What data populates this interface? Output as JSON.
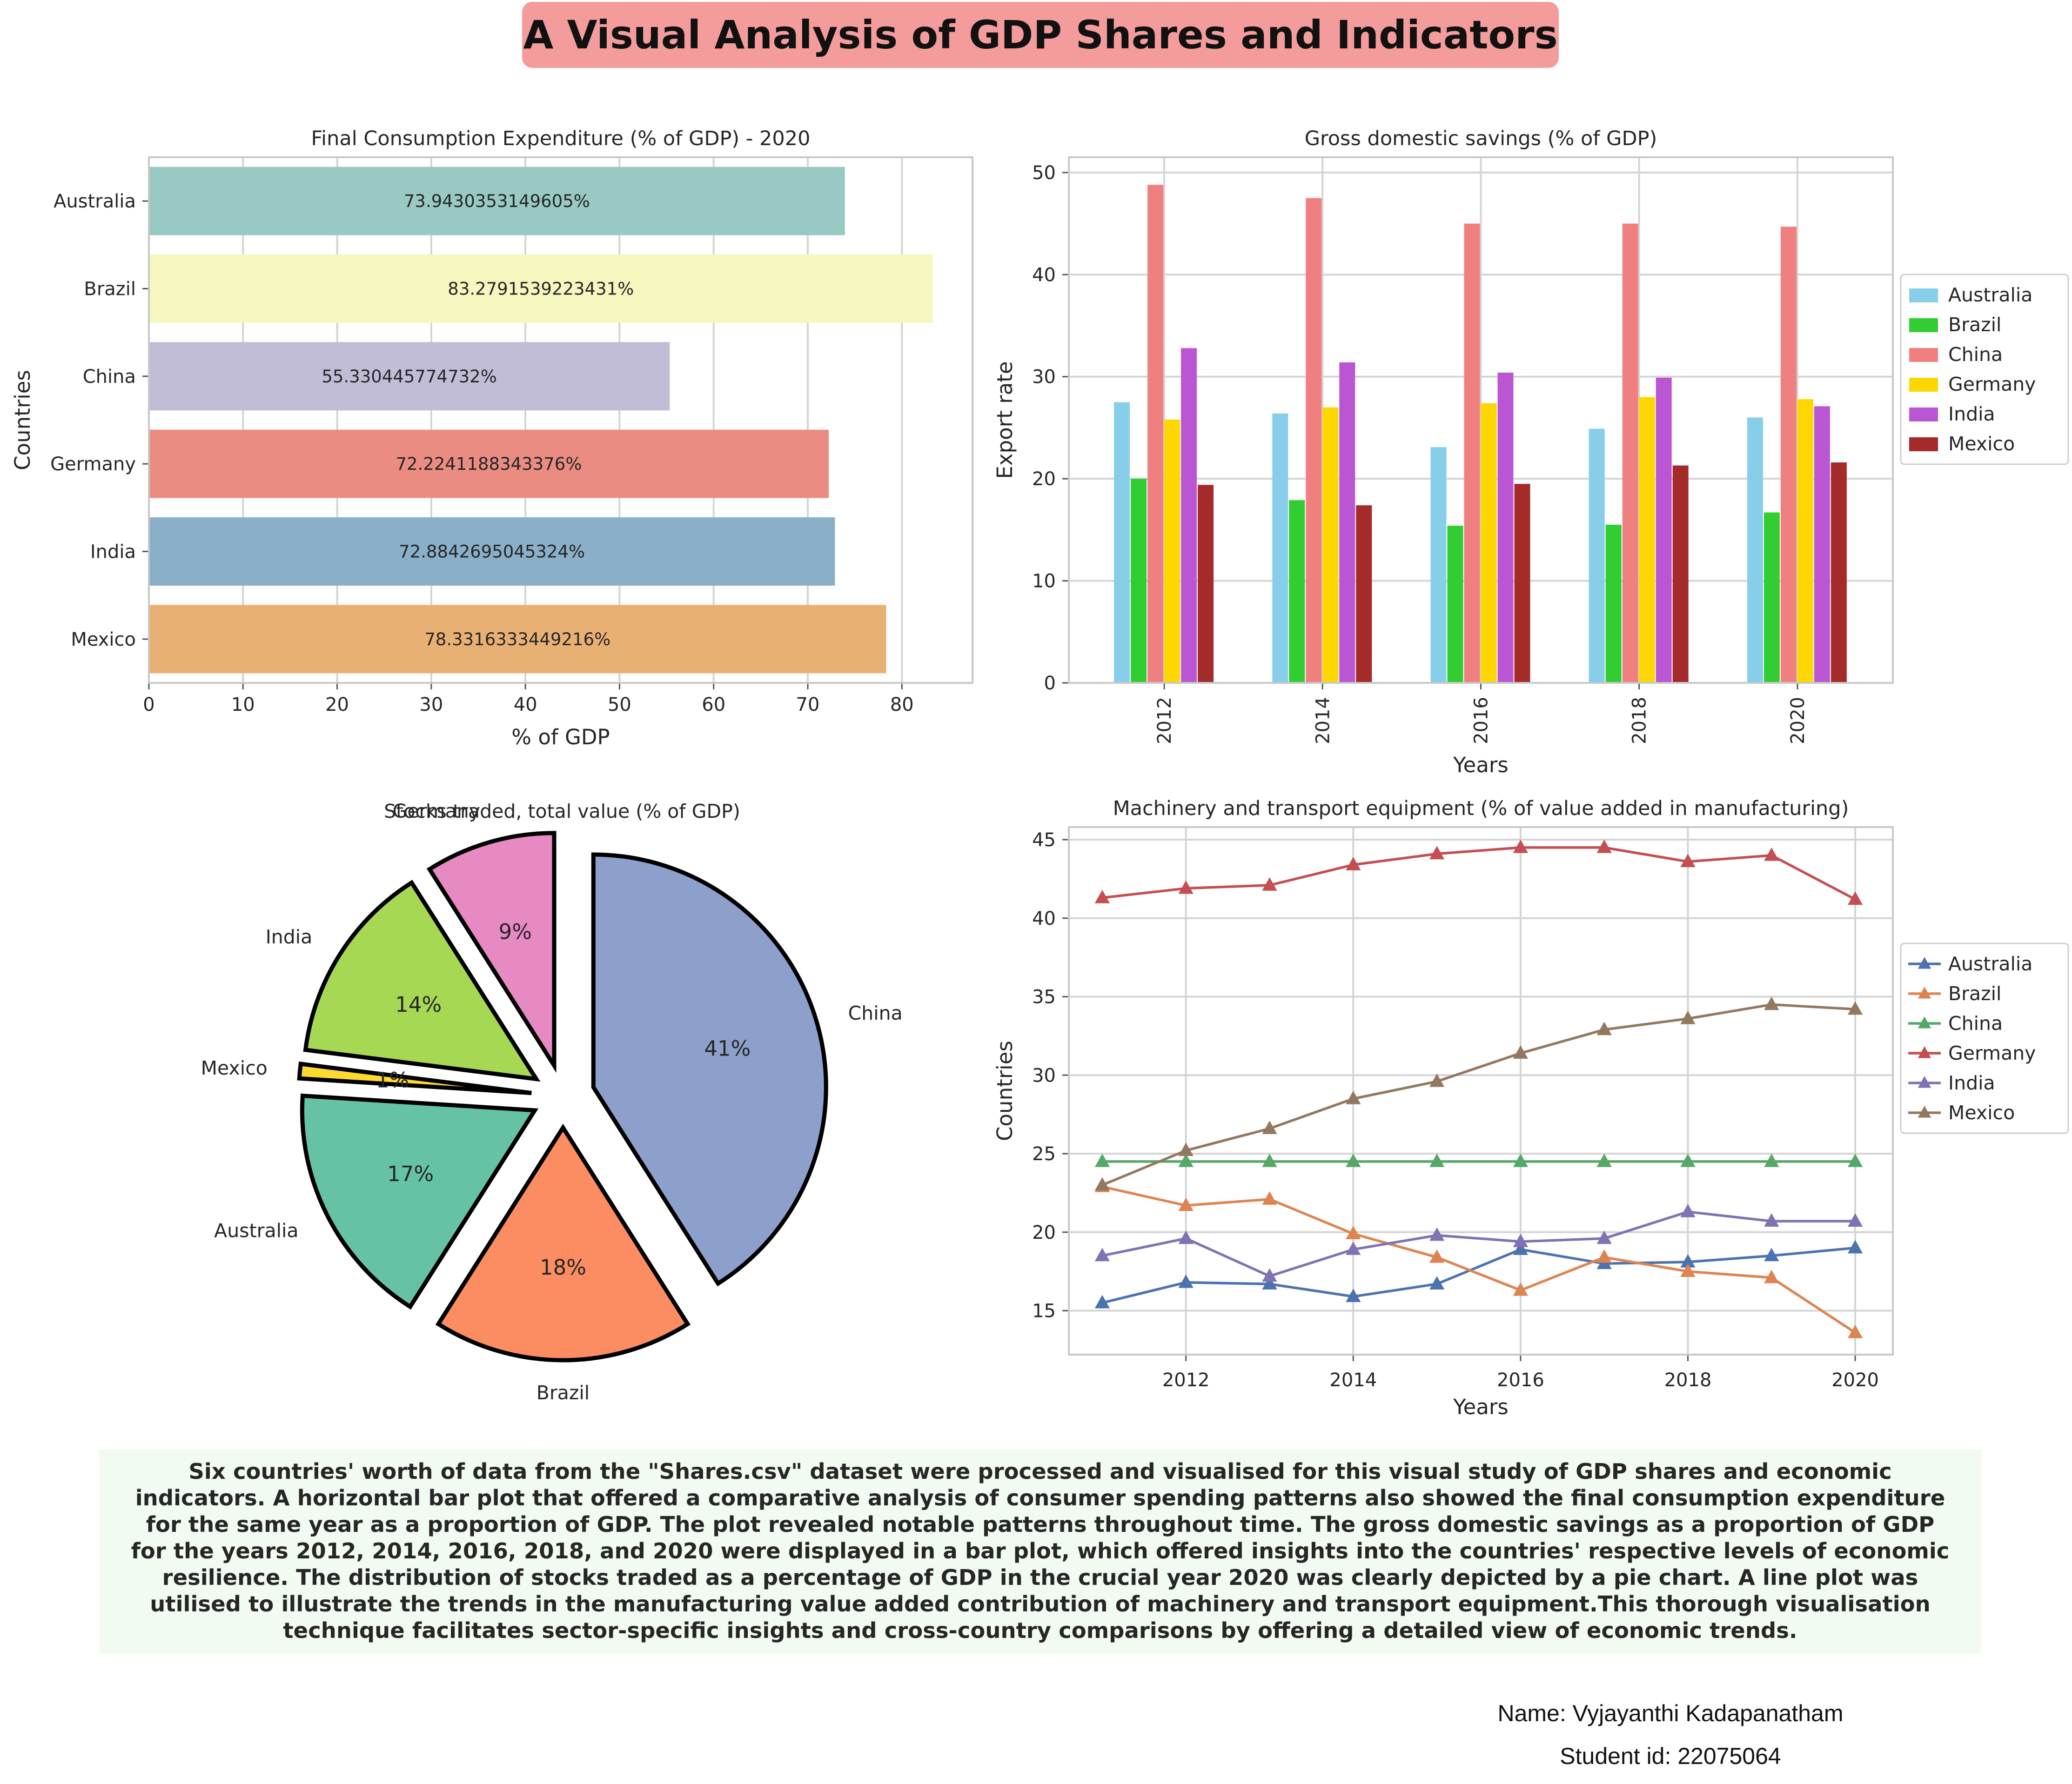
{
  "title": "A Visual Analysis of GDP Shares and Indicators",
  "colors": {
    "title_bg": "#f49c9c",
    "summary_bg": "#f1fbf1"
  },
  "summary": "Six countries' worth of data from the \"Shares.csv\" dataset were processed and visualised for this visual study of GDP shares and economic indicators. A horizontal bar plot that offered a comparative analysis of consumer spending patterns also showed the final consumption expenditure for the same year as a proportion of GDP. The plot revealed notable patterns throughout time. The gross domestic savings as a proportion of GDP for the years 2012, 2014, 2016, 2018, and 2020 were displayed in a bar plot, which offered insights into the countries' respective levels of economic resilience. The distribution of stocks traded as a percentage of GDP in the crucial year 2020 was clearly depicted by a pie chart. A line plot was utilised to illustrate the trends in the manufacturing value added contribution of machinery and transport equipment.This thorough visualisation technique facilitates sector-specific insights and cross-country comparisons by offering a detailed view of economic trends.",
  "footer": {
    "name": "Name: Vyjayanthi Kadapanatham",
    "student_id": "Student id: 22075064"
  },
  "chart_data": [
    {
      "type": "bar",
      "orientation": "horizontal",
      "title": "Final Consumption Expenditure (% of GDP) - 2020",
      "xlabel": "% of GDP",
      "ylabel": "Countries",
      "categories": [
        "Australia",
        "Brazil",
        "China",
        "Germany",
        "India",
        "Mexico"
      ],
      "values": [
        73.9430353149605,
        83.2791539223431,
        55.330445774732,
        72.2241188343376,
        72.8842695045324,
        78.3316333449216
      ],
      "data_labels": [
        "73.9430353149605%",
        "83.2791539223431%",
        "55.330445774732%",
        "72.2241188343376%",
        "72.8842695045324%",
        "78.3316333449216%"
      ],
      "colors": [
        "#98c9c2",
        "#f6f6bf",
        "#c1bdd6",
        "#ea8c82",
        "#89afc9",
        "#e9b074"
      ],
      "xlim": [
        0,
        87.5
      ],
      "xticks": [
        0,
        10,
        20,
        30,
        40,
        50,
        60,
        70,
        80
      ],
      "grid": true
    },
    {
      "type": "bar",
      "title": "Gross domestic savings (% of GDP)",
      "xlabel": "Years",
      "ylabel": "Export rate",
      "categories": [
        "2012",
        "2014",
        "2016",
        "2018",
        "2020"
      ],
      "series": [
        {
          "name": "Australia",
          "color": "#87ceeb",
          "values": [
            27.5,
            26.4,
            23.1,
            24.9,
            26.0
          ]
        },
        {
          "name": "Brazil",
          "color": "#32cd32",
          "values": [
            20.0,
            17.9,
            15.4,
            15.5,
            16.7
          ]
        },
        {
          "name": "China",
          "color": "#f08080",
          "values": [
            48.8,
            47.5,
            45.0,
            45.0,
            44.7
          ]
        },
        {
          "name": "Germany",
          "color": "#ffd700",
          "values": [
            25.8,
            27.0,
            27.4,
            28.0,
            27.8
          ]
        },
        {
          "name": "India",
          "color": "#ba55d3",
          "values": [
            32.8,
            31.4,
            30.4,
            29.9,
            27.1
          ]
        },
        {
          "name": "Mexico",
          "color": "#a52a2a",
          "values": [
            19.4,
            17.4,
            19.5,
            21.3,
            21.6
          ]
        }
      ],
      "ylim": [
        0,
        51.5
      ],
      "yticks": [
        0,
        10,
        20,
        30,
        40,
        50
      ],
      "legend": "right",
      "grid": true
    },
    {
      "type": "pie",
      "title": "Stocks traded, total value (% of GDP)",
      "slices": [
        {
          "label": "China",
          "value": 41,
          "pct": "41%",
          "color": "#8da0cb"
        },
        {
          "label": "Brazil",
          "value": 18,
          "pct": "18%",
          "color": "#fc8d62"
        },
        {
          "label": "Australia",
          "value": 17,
          "pct": "17%",
          "color": "#66c2a5"
        },
        {
          "label": "Mexico",
          "value": 1,
          "pct": "1%",
          "color": "#ffd92f"
        },
        {
          "label": "India",
          "value": 14,
          "pct": "14%",
          "color": "#a6d854"
        },
        {
          "label": "Germany",
          "value": 9,
          "pct": "9%",
          "color": "#e78ac3"
        }
      ]
    },
    {
      "type": "line",
      "title": "Machinery and transport equipment (% of value added in manufacturing)",
      "xlabel": "Years",
      "ylabel": "Countries",
      "x": [
        2011,
        2012,
        2013,
        2014,
        2015,
        2016,
        2017,
        2018,
        2019,
        2020
      ],
      "series": [
        {
          "name": "Australia",
          "color": "#4c72b0",
          "values": [
            15.5,
            16.8,
            16.7,
            15.9,
            16.7,
            18.9,
            18.0,
            18.1,
            18.5,
            19.0
          ]
        },
        {
          "name": "Brazil",
          "color": "#dd8452",
          "values": [
            22.9,
            21.7,
            22.1,
            19.9,
            18.4,
            16.3,
            18.4,
            17.5,
            17.1,
            13.6
          ]
        },
        {
          "name": "China",
          "color": "#55a868",
          "values": [
            24.5,
            24.5,
            24.5,
            24.5,
            24.5,
            24.5,
            24.5,
            24.5,
            24.5,
            24.5
          ]
        },
        {
          "name": "Germany",
          "color": "#c44e52",
          "values": [
            41.3,
            41.9,
            42.1,
            43.4,
            44.1,
            44.5,
            44.5,
            43.6,
            44.0,
            41.2
          ]
        },
        {
          "name": "India",
          "color": "#8172b3",
          "values": [
            18.5,
            19.6,
            17.2,
            18.9,
            19.8,
            19.4,
            19.6,
            21.3,
            20.7,
            20.7
          ]
        },
        {
          "name": "Mexico",
          "color": "#937860",
          "values": [
            23.0,
            25.2,
            26.6,
            28.5,
            29.6,
            31.4,
            32.9,
            33.6,
            34.5,
            34.2
          ]
        }
      ],
      "xlim": [
        2010.6,
        2020.45
      ],
      "ylim": [
        12.2,
        45.8
      ],
      "xticks": [
        2012,
        2014,
        2016,
        2018,
        2020
      ],
      "yticks": [
        15,
        20,
        25,
        30,
        35,
        40,
        45
      ],
      "marker": "triangle",
      "legend": "right",
      "grid": true
    }
  ]
}
